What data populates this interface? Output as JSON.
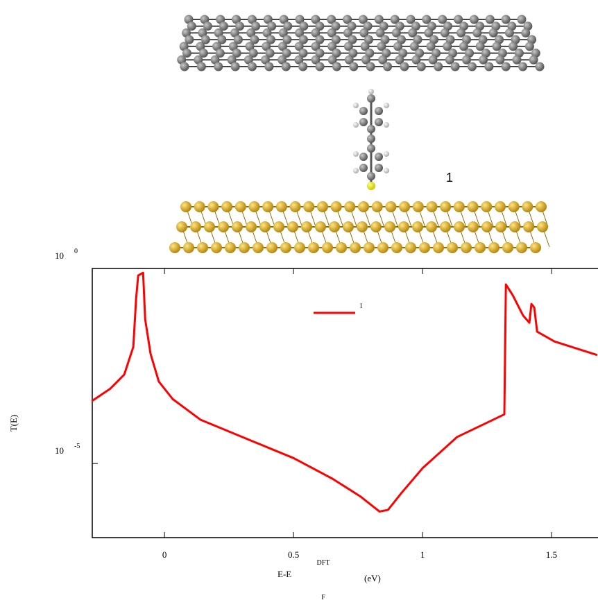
{
  "chart_data": {
    "type": "line",
    "annotation": "1",
    "ylabel": "T(E)",
    "xlabel": {
      "text": "E-E",
      "sup": "DFT",
      "sub": "F",
      "unit": "(eV)"
    },
    "yscale": "log",
    "xlim": [
      -0.28,
      1.68
    ],
    "ylim": [
      1.26e-07,
      1
    ],
    "xticks": [
      0,
      0.5,
      1,
      1.5
    ],
    "yticks": [
      {
        "value": 1,
        "label": "10",
        "exponent": "0"
      },
      {
        "value": 1e-05,
        "label": "10",
        "exponent": "-5"
      }
    ],
    "x": [
      -0.282,
      -0.21,
      -0.156,
      -0.121,
      -0.11,
      -0.102,
      -0.083,
      -0.075,
      -0.054,
      -0.022,
      0.032,
      0.14,
      0.301,
      0.5,
      0.651,
      0.758,
      0.833,
      0.866,
      0.919,
      1.0,
      1.134,
      1.317,
      1.323,
      1.349,
      1.39,
      1.414,
      1.422,
      1.433,
      1.444,
      1.511,
      1.677
    ],
    "series": [
      {
        "name": "1",
        "color": "#ff0000",
        "values": [
          0.000398,
          0.000832,
          0.00191,
          0.00977,
          0.17,
          0.661,
          0.776,
          0.0501,
          0.00646,
          0.00126,
          0.000447,
          0.000132,
          4.79e-05,
          1.38e-05,
          4.07e-06,
          1.45e-06,
          5.89e-07,
          6.46e-07,
          1.78e-06,
          7.59e-06,
          4.79e-05,
          0.000182,
          0.389,
          0.209,
          0.0617,
          0.0407,
          0.123,
          0.1,
          0.024,
          0.0135,
          0.00603
        ]
      }
    ]
  }
}
